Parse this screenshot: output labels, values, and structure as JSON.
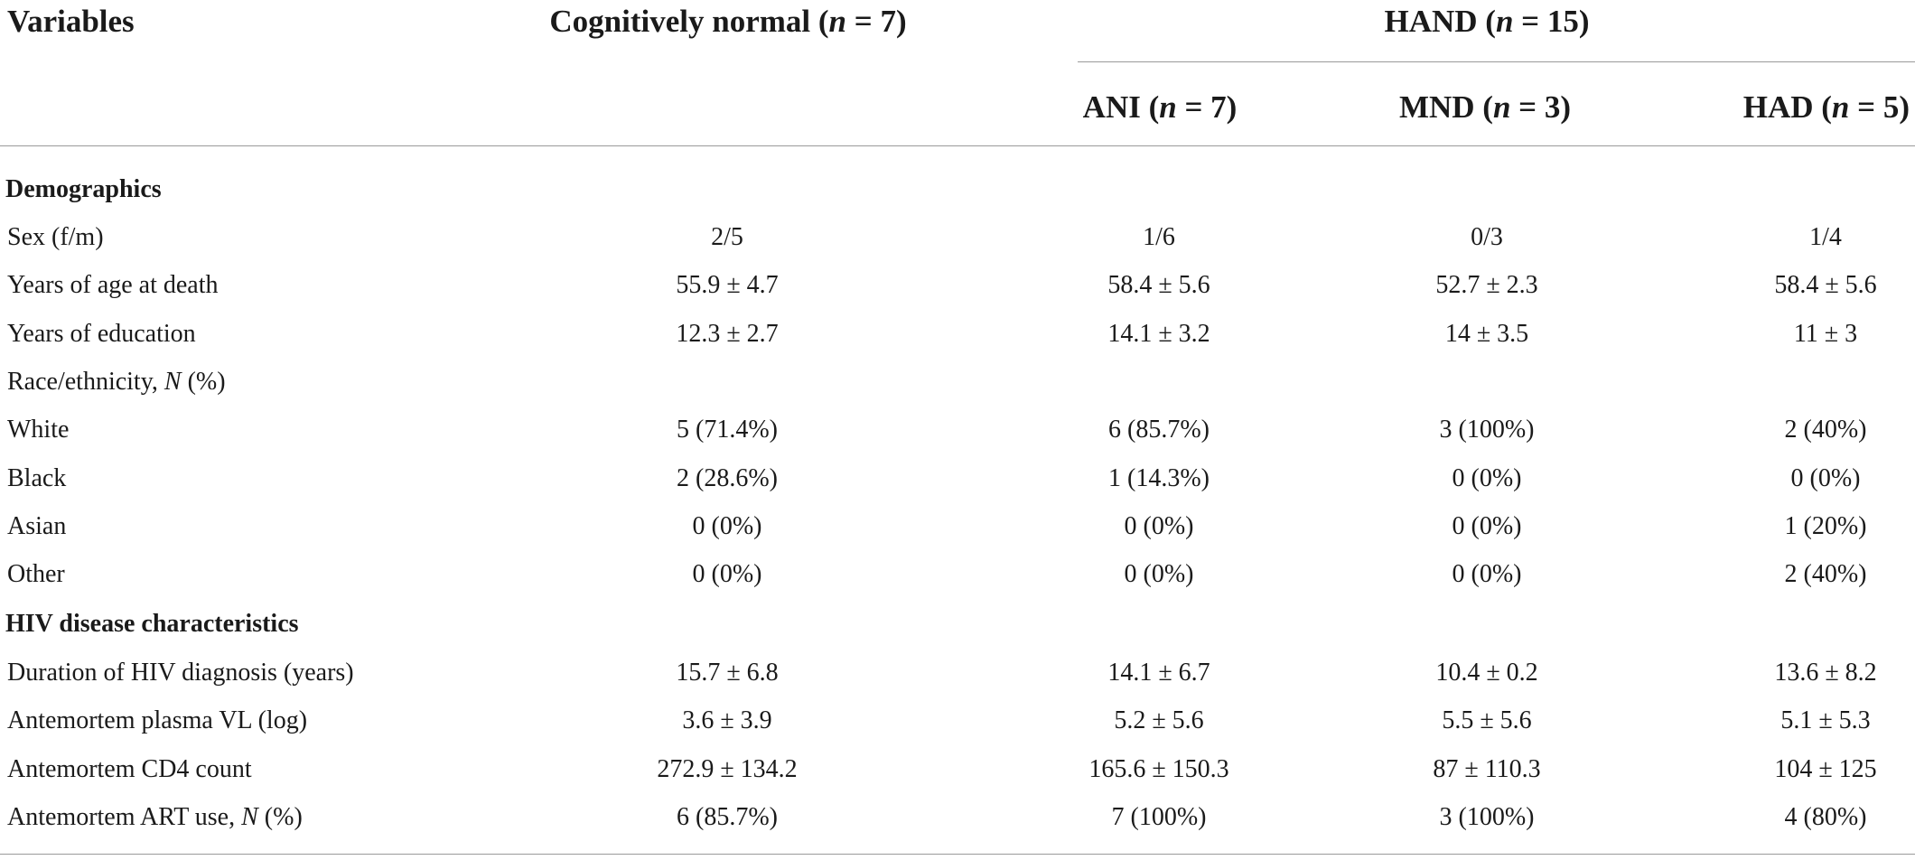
{
  "table": {
    "header": {
      "variables": "Variables",
      "cn_text": "Cognitively normal (",
      "cn_n": "n",
      "cn_val": " = 7)",
      "hand_text": "HAND (",
      "hand_n": "n",
      "hand_val": " = 15)",
      "ani_text": "ANI (",
      "ani_n": "n",
      "ani_val": " = 7)",
      "mnd_text": "MND (",
      "mnd_n": "n",
      "mnd_val": " = 3)",
      "had_text": "HAD (",
      "had_n": "n",
      "had_val": " = 5)"
    },
    "sections": {
      "demographics": "Demographics",
      "hiv": "HIV disease characteristics"
    },
    "rows": [
      {
        "label": "Sex (f/m)",
        "cn": "2/5",
        "ani": "1/6",
        "mnd": "0/3",
        "had": "1/4"
      },
      {
        "label": "Years of age at death",
        "cn": "55.9 ± 4.7",
        "ani": "58.4 ± 5.6",
        "mnd": "52.7 ± 2.3",
        "had": "58.4 ± 5.6"
      },
      {
        "label": "Years of education",
        "cn": "12.3 ± 2.7",
        "ani": "14.1 ± 3.2",
        "mnd": "14 ± 3.5",
        "had": "11 ± 3"
      },
      {
        "label": "Race/ethnicity, ",
        "label_italic": "N",
        "label_suffix": " (%)",
        "cn": "",
        "ani": "",
        "mnd": "",
        "had": ""
      },
      {
        "label": "White",
        "cn": "5 (71.4%)",
        "ani": "6 (85.7%)",
        "mnd": "3 (100%)",
        "had": "2 (40%)"
      },
      {
        "label": "Black",
        "cn": "2 (28.6%)",
        "ani": "1 (14.3%)",
        "mnd": "0 (0%)",
        "had": "0 (0%)"
      },
      {
        "label": "Asian",
        "cn": "0 (0%)",
        "ani": "0 (0%)",
        "mnd": "0 (0%)",
        "had": "1 (20%)"
      },
      {
        "label": "Other",
        "cn": "0 (0%)",
        "ani": "0 (0%)",
        "mnd": "0 (0%)",
        "had": "2 (40%)"
      },
      {
        "label": "Duration of HIV diagnosis (years)",
        "cn": "15.7 ± 6.8",
        "ani": "14.1 ± 6.7",
        "mnd": "10.4 ± 0.2",
        "had": "13.6 ± 8.2"
      },
      {
        "label": "Antemortem plasma VL (log)",
        "cn": "3.6 ± 3.9",
        "ani": "5.2 ± 5.6",
        "mnd": "5.5 ± 5.6",
        "had": "5.1 ± 5.3"
      },
      {
        "label": "Antemortem CD4 count",
        "cn": "272.9 ± 134.2",
        "ani": "165.6 ± 150.3",
        "mnd": "87 ± 110.3",
        "had": "104 ± 125"
      },
      {
        "label": "Antemortem ART use, ",
        "label_italic": "N",
        "label_suffix": " (%)",
        "cn": "6 (85.7%)",
        "ani": "7 (100%)",
        "mnd": "3 (100%)",
        "had": "4 (80%)"
      }
    ]
  }
}
